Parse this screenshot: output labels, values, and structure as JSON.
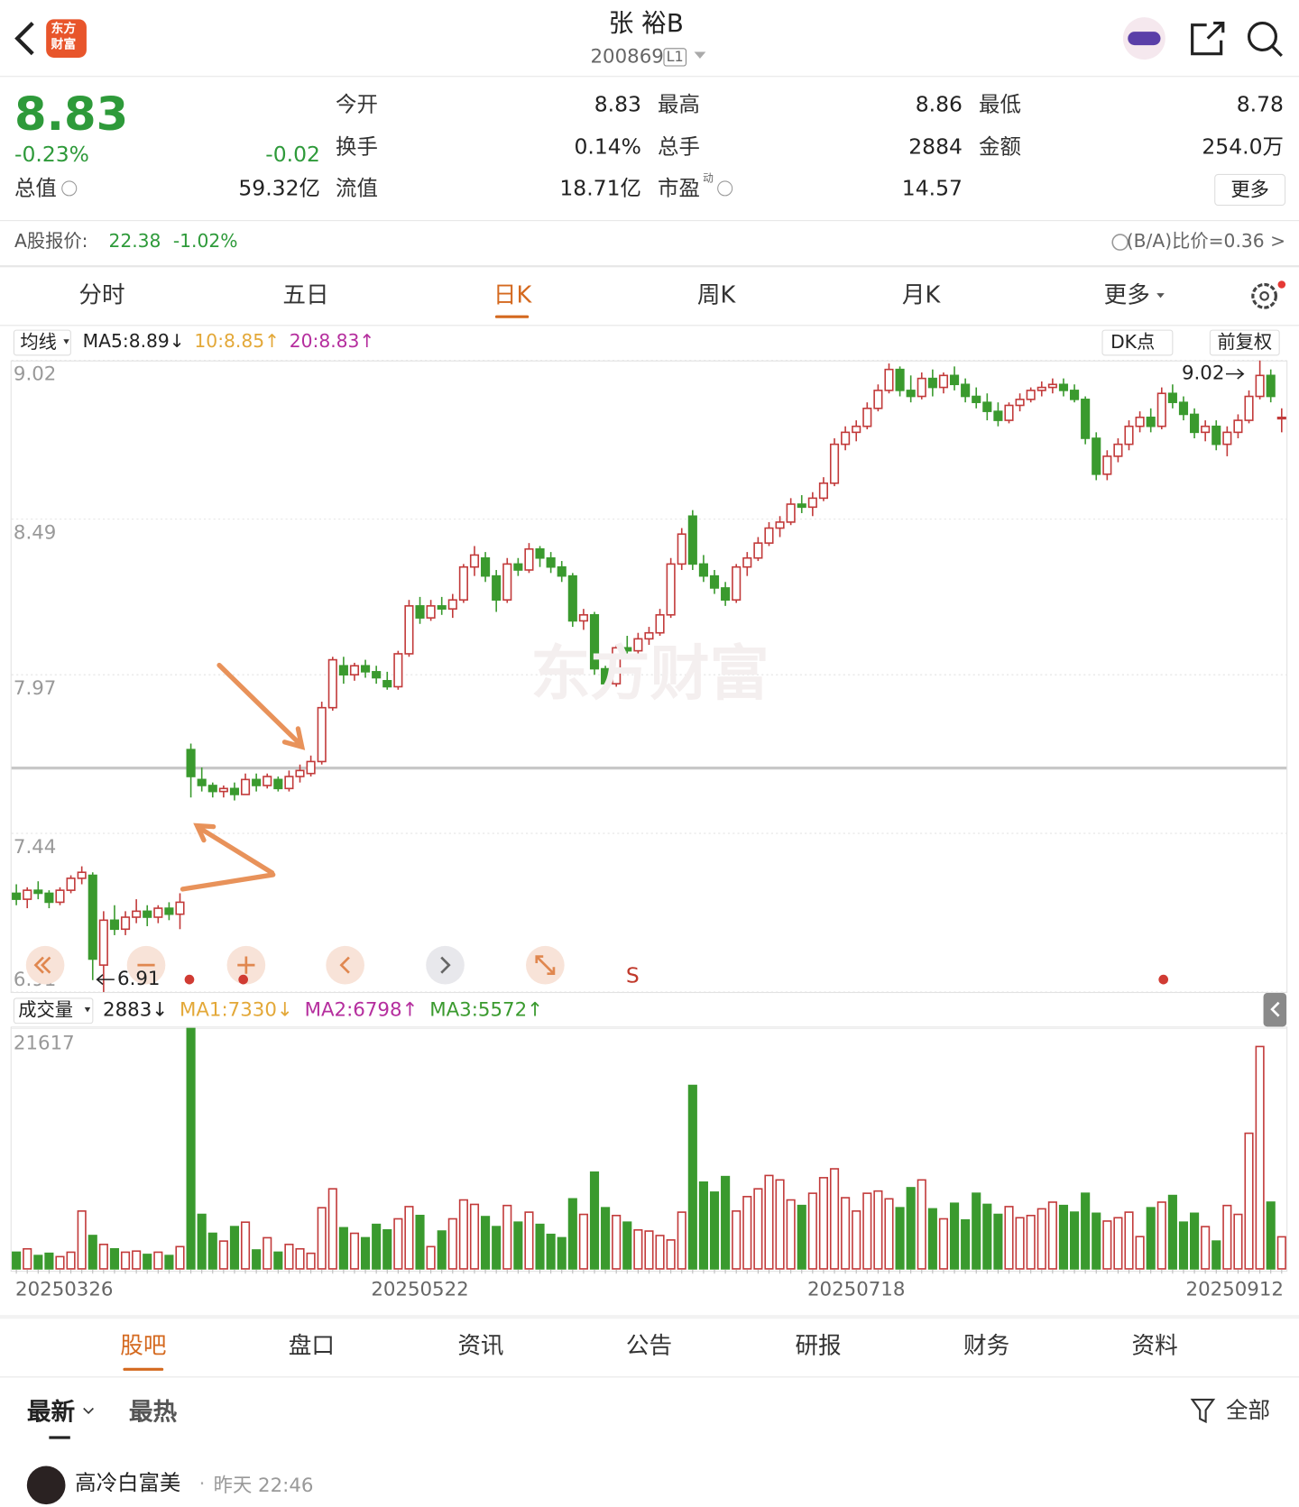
{
  "header": {
    "logo": [
      "东方",
      "财富"
    ],
    "title": "张 裕B",
    "code": "200869",
    "level": "L1"
  },
  "quote": {
    "price": "8.83",
    "change_pct": "-0.23%",
    "change": "-0.02",
    "total_value_label": "总值",
    "total_value": "59.32亿",
    "rows": [
      [
        {
          "label": "今开",
          "value": "8.83"
        },
        {
          "label": "最高",
          "value": "8.86"
        },
        {
          "label": "最低",
          "value": "8.78"
        }
      ],
      [
        {
          "label": "换手",
          "value": "0.14%"
        },
        {
          "label": "总手",
          "value": "2884"
        },
        {
          "label": "金额",
          "value": "254.0万"
        }
      ],
      [
        {
          "label": "流值",
          "value": "18.71亿"
        },
        {
          "label": "市盈",
          "sup": "动",
          "value": "14.57"
        }
      ]
    ],
    "more": "更多"
  },
  "a_share": {
    "label": "A股报价:",
    "price": "22.38",
    "change": "-1.02%",
    "ratio": "(B/A)比价=0.36 >"
  },
  "tabs": [
    "分时",
    "五日",
    "日K",
    "周K",
    "月K",
    "更多"
  ],
  "chart_data": {
    "type": "candlestick",
    "ma_menu": "均线",
    "ma_legend": [
      {
        "text": "MA5:8.89↓",
        "color": "#222222"
      },
      {
        "text": "10:8.85↑",
        "color": "#e3a838"
      },
      {
        "text": "20:8.83↑",
        "color": "#b52e9e"
      }
    ],
    "dk": "DK点",
    "adjust": "前复权",
    "watermark": "东方财富",
    "high_annotation": "9.02",
    "low_annotation": "6.91",
    "signal": "S",
    "up_color": "#c23a3a",
    "down_color": "#3a9a2e",
    "ylim": [
      6.91,
      9.02
    ],
    "yticks": [
      9.02,
      8.49,
      7.97,
      7.44,
      6.91
    ],
    "categories": [
      "20250326",
      null,
      null,
      null,
      null,
      null,
      null,
      null,
      null,
      null,
      null,
      null,
      null,
      null,
      null,
      null,
      null,
      null,
      null,
      null,
      null,
      null,
      null,
      null,
      null,
      null,
      null,
      null,
      null,
      null,
      null,
      null,
      null,
      null,
      null,
      null,
      null,
      "20250522",
      null,
      null,
      null,
      null,
      null,
      null,
      null,
      null,
      null,
      null,
      null,
      null,
      null,
      null,
      null,
      null,
      null,
      null,
      null,
      null,
      null,
      null,
      null,
      null,
      null,
      null,
      null,
      null,
      null,
      null,
      null,
      null,
      null,
      null,
      null,
      null,
      null,
      null,
      null,
      "20250718",
      null,
      null,
      null,
      null,
      null,
      null,
      null,
      null,
      null,
      null,
      null,
      null,
      null,
      null,
      null,
      null,
      null,
      null,
      null,
      null,
      null,
      null,
      null,
      null,
      null,
      null,
      null,
      null,
      null,
      null,
      null,
      null,
      null,
      null,
      null,
      null,
      null,
      null,
      "20250912"
    ],
    "ohlc": [
      [
        7.24,
        7.27,
        7.2,
        7.22
      ],
      [
        7.22,
        7.26,
        7.19,
        7.25
      ],
      [
        7.25,
        7.28,
        7.22,
        7.24
      ],
      [
        7.24,
        7.25,
        7.19,
        7.21
      ],
      [
        7.21,
        7.26,
        7.2,
        7.25
      ],
      [
        7.25,
        7.3,
        7.24,
        7.29
      ],
      [
        7.29,
        7.33,
        7.27,
        7.31
      ],
      [
        7.3,
        7.31,
        6.95,
        7.02
      ],
      [
        7.0,
        7.18,
        6.91,
        7.15
      ],
      [
        7.15,
        7.2,
        7.1,
        7.12
      ],
      [
        7.12,
        7.18,
        7.1,
        7.16
      ],
      [
        7.16,
        7.22,
        7.14,
        7.18
      ],
      [
        7.18,
        7.2,
        7.13,
        7.16
      ],
      [
        7.16,
        7.2,
        7.14,
        7.19
      ],
      [
        7.19,
        7.21,
        7.15,
        7.17
      ],
      [
        7.17,
        7.24,
        7.12,
        7.21
      ],
      [
        7.72,
        7.74,
        7.56,
        7.63
      ],
      [
        7.62,
        7.66,
        7.58,
        7.6
      ],
      [
        7.6,
        7.61,
        7.56,
        7.58
      ],
      [
        7.58,
        7.6,
        7.56,
        7.59
      ],
      [
        7.59,
        7.61,
        7.55,
        7.57
      ],
      [
        7.57,
        7.64,
        7.57,
        7.62
      ],
      [
        7.62,
        7.64,
        7.58,
        7.6
      ],
      [
        7.6,
        7.64,
        7.59,
        7.63
      ],
      [
        7.62,
        7.63,
        7.58,
        7.59
      ],
      [
        7.59,
        7.65,
        7.58,
        7.63
      ],
      [
        7.63,
        7.67,
        7.61,
        7.65
      ],
      [
        7.64,
        7.7,
        7.63,
        7.68
      ],
      [
        7.68,
        7.88,
        7.67,
        7.86
      ],
      [
        7.86,
        8.03,
        7.85,
        8.02
      ],
      [
        8.0,
        8.03,
        7.94,
        7.97
      ],
      [
        7.97,
        8.01,
        7.95,
        8.0
      ],
      [
        8.0,
        8.02,
        7.96,
        7.98
      ],
      [
        7.98,
        8.0,
        7.94,
        7.96
      ],
      [
        7.95,
        7.98,
        7.92,
        7.93
      ],
      [
        7.93,
        8.05,
        7.92,
        8.04
      ],
      [
        8.04,
        8.22,
        8.03,
        8.2
      ],
      [
        8.2,
        8.23,
        8.14,
        8.16
      ],
      [
        8.16,
        8.22,
        8.15,
        8.2
      ],
      [
        8.2,
        8.23,
        8.17,
        8.19
      ],
      [
        8.19,
        8.24,
        8.16,
        8.22
      ],
      [
        8.22,
        8.34,
        8.21,
        8.33
      ],
      [
        8.33,
        8.4,
        8.3,
        8.37
      ],
      [
        8.36,
        8.38,
        8.28,
        8.3
      ],
      [
        8.3,
        8.32,
        8.18,
        8.22
      ],
      [
        8.22,
        8.36,
        8.21,
        8.34
      ],
      [
        8.34,
        8.36,
        8.3,
        8.32
      ],
      [
        8.32,
        8.41,
        8.31,
        8.39
      ],
      [
        8.39,
        8.4,
        8.33,
        8.36
      ],
      [
        8.36,
        8.38,
        8.31,
        8.33
      ],
      [
        8.33,
        8.35,
        8.28,
        8.3
      ],
      [
        8.3,
        8.31,
        8.13,
        8.15
      ],
      [
        8.15,
        8.19,
        8.12,
        8.17
      ],
      [
        8.17,
        8.18,
        7.97,
        7.99
      ],
      [
        7.99,
        8.0,
        7.92,
        7.94
      ],
      [
        7.94,
        8.07,
        7.93,
        8.06
      ],
      [
        8.06,
        8.1,
        8.03,
        8.05
      ],
      [
        8.05,
        8.11,
        8.04,
        8.09
      ],
      [
        8.09,
        8.13,
        8.07,
        8.11
      ],
      [
        8.11,
        8.19,
        8.1,
        8.17
      ],
      [
        8.17,
        8.36,
        8.16,
        8.34
      ],
      [
        8.34,
        8.46,
        8.32,
        8.44
      ],
      [
        8.5,
        8.52,
        8.32,
        8.34
      ],
      [
        8.34,
        8.37,
        8.28,
        8.3
      ],
      [
        8.3,
        8.32,
        8.24,
        8.26
      ],
      [
        8.26,
        8.28,
        8.2,
        8.22
      ],
      [
        8.22,
        8.34,
        8.21,
        8.33
      ],
      [
        8.33,
        8.38,
        8.3,
        8.36
      ],
      [
        8.36,
        8.43,
        8.35,
        8.41
      ],
      [
        8.41,
        8.48,
        8.4,
        8.46
      ],
      [
        8.46,
        8.5,
        8.43,
        8.48
      ],
      [
        8.48,
        8.56,
        8.47,
        8.54
      ],
      [
        8.54,
        8.57,
        8.51,
        8.53
      ],
      [
        8.53,
        8.58,
        8.5,
        8.56
      ],
      [
        8.56,
        8.63,
        8.55,
        8.61
      ],
      [
        8.61,
        8.76,
        8.6,
        8.74
      ],
      [
        8.74,
        8.8,
        8.72,
        8.78
      ],
      [
        8.78,
        8.82,
        8.75,
        8.8
      ],
      [
        8.8,
        8.88,
        8.79,
        8.86
      ],
      [
        8.86,
        8.94,
        8.85,
        8.92
      ],
      [
        8.92,
        9.01,
        8.91,
        8.99
      ],
      [
        8.99,
        9.0,
        8.9,
        8.92
      ],
      [
        8.92,
        8.97,
        8.88,
        8.9
      ],
      [
        8.9,
        8.98,
        8.89,
        8.96
      ],
      [
        8.96,
        8.99,
        8.9,
        8.93
      ],
      [
        8.93,
        8.98,
        8.91,
        8.97
      ],
      [
        8.97,
        9.0,
        8.92,
        8.94
      ],
      [
        8.94,
        8.96,
        8.88,
        8.9
      ],
      [
        8.9,
        8.93,
        8.86,
        8.88
      ],
      [
        8.88,
        8.91,
        8.82,
        8.85
      ],
      [
        8.85,
        8.88,
        8.8,
        8.82
      ],
      [
        8.82,
        8.88,
        8.81,
        8.87
      ],
      [
        8.87,
        8.91,
        8.85,
        8.89
      ],
      [
        8.89,
        8.93,
        8.88,
        8.92
      ],
      [
        8.92,
        8.95,
        8.9,
        8.93
      ],
      [
        8.93,
        8.96,
        8.91,
        8.94
      ],
      [
        8.94,
        8.96,
        8.9,
        8.92
      ],
      [
        8.92,
        8.94,
        8.88,
        8.89
      ],
      [
        8.89,
        8.9,
        8.74,
        8.76
      ],
      [
        8.76,
        8.78,
        8.62,
        8.64
      ],
      [
        8.64,
        8.72,
        8.62,
        8.7
      ],
      [
        8.7,
        8.76,
        8.68,
        8.74
      ],
      [
        8.74,
        8.82,
        8.72,
        8.8
      ],
      [
        8.8,
        8.85,
        8.78,
        8.83
      ],
      [
        8.83,
        8.86,
        8.78,
        8.8
      ],
      [
        8.8,
        8.93,
        8.79,
        8.91
      ],
      [
        8.91,
        8.94,
        8.86,
        8.88
      ],
      [
        8.88,
        8.9,
        8.82,
        8.84
      ],
      [
        8.84,
        8.86,
        8.76,
        8.78
      ],
      [
        8.78,
        8.82,
        8.75,
        8.8
      ],
      [
        8.8,
        8.82,
        8.72,
        8.74
      ],
      [
        8.74,
        8.8,
        8.7,
        8.78
      ],
      [
        8.78,
        8.84,
        8.76,
        8.82
      ],
      [
        8.82,
        8.92,
        8.81,
        8.9
      ],
      [
        8.9,
        9.02,
        8.89,
        8.97
      ],
      [
        8.97,
        8.99,
        8.88,
        8.9
      ],
      [
        8.83,
        8.86,
        8.78,
        8.83
      ]
    ],
    "volume": {
      "menu": "成交量",
      "legend": [
        {
          "text": "2883↓",
          "color": "#222222"
        },
        {
          "text": "MA1:7330↓",
          "color": "#e3a838"
        },
        {
          "text": "MA2:6798↑",
          "color": "#b52e9e"
        },
        {
          "text": "MA3:5572↑",
          "color": "#3a9a2e"
        }
      ],
      "ylim": [
        0,
        21617
      ],
      "yticks": [
        21617
      ],
      "values": [
        1500,
        1800,
        1200,
        1400,
        1100,
        1500,
        5200,
        3000,
        2200,
        1800,
        1500,
        1600,
        1300,
        1500,
        1200,
        2000,
        21617,
        4900,
        3200,
        2500,
        3800,
        4200,
        1700,
        2800,
        1500,
        2200,
        1800,
        1400,
        5500,
        7200,
        3700,
        3200,
        2800,
        4000,
        3500,
        4500,
        5600,
        4800,
        2000,
        3400,
        4500,
        6200,
        5800,
        4700,
        3800,
        5700,
        4200,
        5100,
        4000,
        3100,
        2800,
        6300,
        4900,
        8700,
        5500,
        4800,
        4200,
        3500,
        3400,
        3000,
        2600,
        5100,
        16500,
        7800,
        6900,
        8300,
        5200,
        6500,
        7200,
        8400,
        8000,
        6200,
        5700,
        6800,
        8200,
        9000,
        6400,
        5200,
        6800,
        7000,
        6300,
        5500,
        7300,
        8000,
        5400,
        4500,
        5900,
        4400,
        6800,
        5800,
        4900,
        5600,
        4600,
        4800,
        5400,
        6000,
        5700,
        5100,
        6800,
        5000,
        4300,
        4600,
        5100,
        2900,
        5500,
        6000,
        6600,
        4200,
        5000,
        3800,
        2500,
        5700,
        4900,
        12200,
        20000,
        6000,
        2883
      ]
    }
  },
  "bottom_tabs": [
    "股吧",
    "盘口",
    "资讯",
    "公告",
    "研报",
    "财务",
    "资料"
  ],
  "feed_tabs": [
    "最新",
    "最热"
  ],
  "filter": "全部",
  "post": {
    "user": "高冷白富美",
    "time": "昨天 22:46"
  }
}
